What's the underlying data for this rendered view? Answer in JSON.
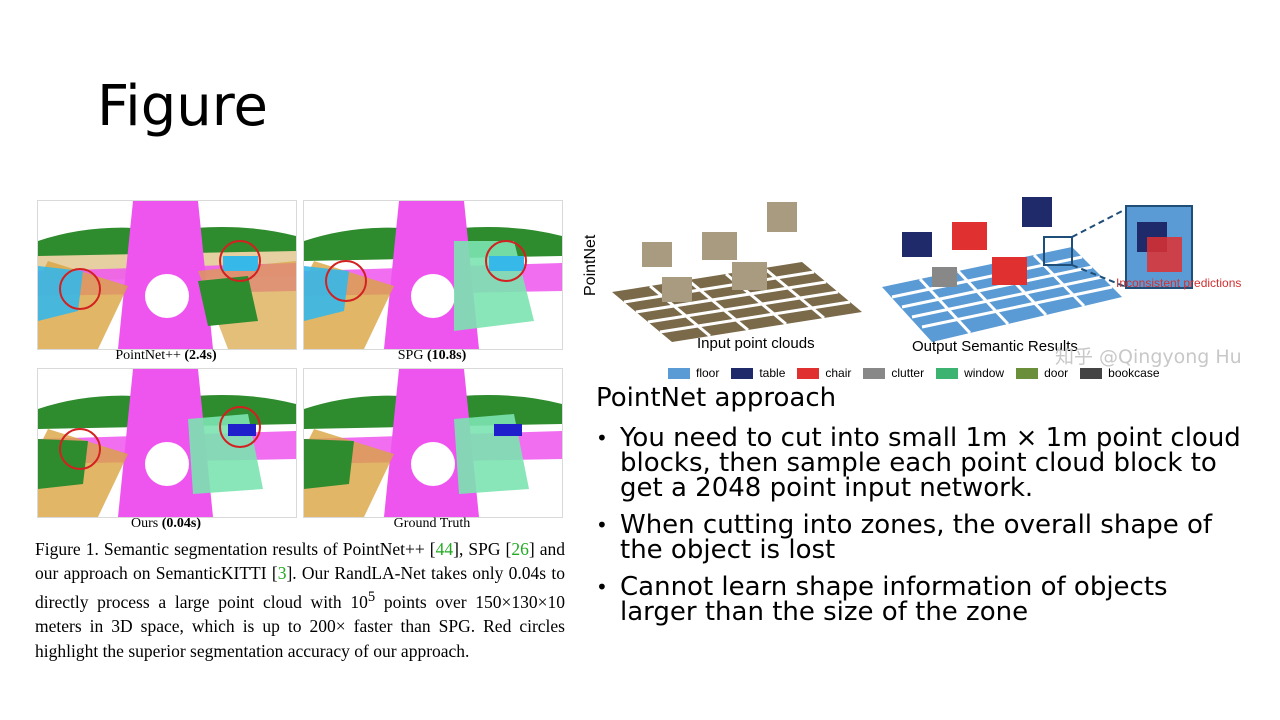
{
  "slide": {
    "title": "Figure"
  },
  "left_figure": {
    "panels": [
      {
        "label": "PointNet++",
        "time": "(2.4s)"
      },
      {
        "label": "SPG",
        "time": "(10.8s)"
      },
      {
        "label": "Ours",
        "time": "(0.04s)"
      },
      {
        "label": "Ground Truth",
        "time": ""
      }
    ],
    "caption": {
      "p1": "Figure 1. Semantic segmentation results of PointNet++ [",
      "r1": "44",
      "p2": "], SPG [",
      "r2": "26",
      "p3": "] and our approach on SemanticKITTI [",
      "r3": "3",
      "p4": "].  Our RandLA-Net takes only 0.04s to directly process a large point cloud with 10",
      "sup": "5",
      "p5": " points over 150×130×10 meters in 3D space, which is up to 200× faster than SPG. Red circles highlight the superior segmentation accuracy of our approach."
    }
  },
  "right_figure": {
    "side_label": "PointNet",
    "input_label": "Input point clouds",
    "output_label": "Output Semantic Results",
    "annotation": "Inconsistent predictions",
    "watermark": "知乎 @Qingyong Hu",
    "legend": [
      {
        "name": "floor",
        "color": "#5b9bd5"
      },
      {
        "name": "table",
        "color": "#1f2a6b"
      },
      {
        "name": "chair",
        "color": "#e03030"
      },
      {
        "name": "clutter",
        "color": "#888888"
      },
      {
        "name": "window",
        "color": "#3cb371"
      },
      {
        "name": "door",
        "color": "#6b8e3a"
      },
      {
        "name": "bookcase",
        "color": "#444444"
      }
    ]
  },
  "text": {
    "heading": "PointNet approach",
    "bullets": [
      "You need to cut into small 1m × 1m point cloud blocks, then sample each point cloud block to get a 2048 point input network.",
      "When cutting into zones, the overall shape of the object is lost",
      "Cannot learn shape information of objects larger than the size of the zone"
    ]
  }
}
